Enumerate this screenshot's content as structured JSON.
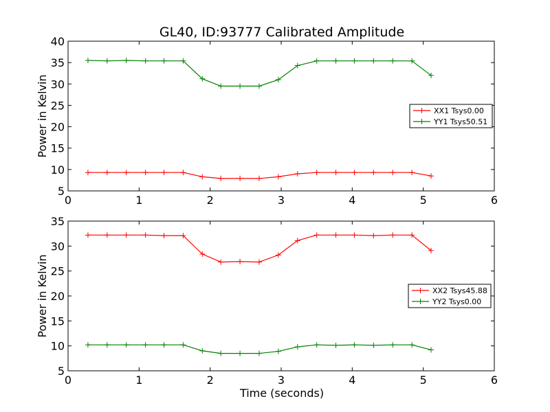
{
  "figure": {
    "title": "GL40, ID:93777 Calibrated Amplitude",
    "xlabel": "Time (seconds)"
  },
  "chart_data": [
    {
      "type": "line",
      "title": "GL40, ID:93777 Calibrated Amplitude",
      "xlabel": "",
      "ylabel": "Power in Kelvin",
      "xlim": [
        0,
        6
      ],
      "ylim": [
        5,
        40
      ],
      "xticks": [
        0,
        1,
        2,
        3,
        4,
        5,
        6
      ],
      "yticks": [
        5,
        10,
        15,
        20,
        25,
        30,
        35,
        40
      ],
      "grid": false,
      "legend_position": "right",
      "x": [
        0.28,
        0.55,
        0.82,
        1.09,
        1.35,
        1.62,
        1.89,
        2.15,
        2.42,
        2.69,
        2.96,
        3.23,
        3.5,
        3.77,
        4.03,
        4.3,
        4.57,
        4.84,
        5.11
      ],
      "series": [
        {
          "name": "XX1 Tsys0.00",
          "color": "#ff0000",
          "values": [
            9.3,
            9.3,
            9.3,
            9.3,
            9.3,
            9.3,
            8.3,
            7.9,
            7.9,
            7.9,
            8.3,
            9.0,
            9.3,
            9.3,
            9.3,
            9.3,
            9.3,
            9.3,
            8.5
          ]
        },
        {
          "name": "YY1 Tsys50.51",
          "color": "#008000",
          "values": [
            35.5,
            35.4,
            35.5,
            35.4,
            35.4,
            35.4,
            31.2,
            29.5,
            29.5,
            29.5,
            31.0,
            34.3,
            35.4,
            35.4,
            35.4,
            35.4,
            35.4,
            35.4,
            32.0
          ]
        }
      ]
    },
    {
      "type": "line",
      "title": "",
      "xlabel": "Time (seconds)",
      "ylabel": "Power in Kelvin",
      "xlim": [
        0,
        6
      ],
      "ylim": [
        5,
        35
      ],
      "xticks": [
        0,
        1,
        2,
        3,
        4,
        5,
        6
      ],
      "yticks": [
        5,
        10,
        15,
        20,
        25,
        30,
        35
      ],
      "grid": false,
      "legend_position": "right",
      "x": [
        0.28,
        0.55,
        0.82,
        1.09,
        1.35,
        1.62,
        1.89,
        2.15,
        2.42,
        2.69,
        2.96,
        3.23,
        3.5,
        3.77,
        4.03,
        4.3,
        4.57,
        4.84,
        5.11
      ],
      "series": [
        {
          "name": "XX2 Tsys45.88",
          "color": "#ff0000",
          "values": [
            32.2,
            32.2,
            32.2,
            32.2,
            32.1,
            32.1,
            28.4,
            26.8,
            26.9,
            26.8,
            28.2,
            31.1,
            32.2,
            32.2,
            32.2,
            32.1,
            32.2,
            32.2,
            29.1
          ]
        },
        {
          "name": "YY2 Tsys0.00",
          "color": "#008000",
          "values": [
            10.2,
            10.2,
            10.2,
            10.2,
            10.2,
            10.2,
            9.0,
            8.5,
            8.5,
            8.5,
            8.9,
            9.8,
            10.2,
            10.1,
            10.2,
            10.1,
            10.2,
            10.2,
            9.2
          ]
        }
      ]
    }
  ]
}
